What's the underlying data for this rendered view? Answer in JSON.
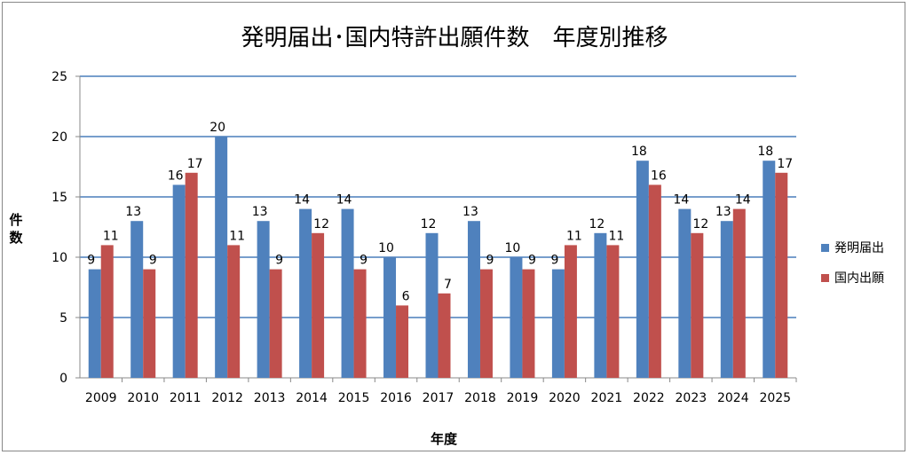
{
  "chart_data": {
    "type": "bar",
    "title": "発明届出･国内特許出願件数　年度別推移",
    "xlabel": "年度",
    "ylabel": "件数",
    "ylim": [
      0,
      25
    ],
    "yticks": [
      0,
      5,
      10,
      15,
      20,
      25
    ],
    "grid": true,
    "legend_position": "right",
    "categories": [
      "2009",
      "2010",
      "2011",
      "2012",
      "2013",
      "2014",
      "2015",
      "2016",
      "2017",
      "2018",
      "2019",
      "2020",
      "2021",
      "2022",
      "2023",
      "2024",
      "2025"
    ],
    "series": [
      {
        "name": "発明届出",
        "color": "#4f81bd",
        "values": [
          9,
          13,
          16,
          20,
          13,
          14,
          14,
          10,
          12,
          13,
          10,
          9,
          12,
          18,
          14,
          13,
          18
        ]
      },
      {
        "name": "国内出願",
        "color": "#c0504d",
        "values": [
          11,
          9,
          17,
          11,
          9,
          12,
          9,
          6,
          7,
          9,
          9,
          11,
          11,
          16,
          12,
          14,
          17
        ]
      }
    ]
  }
}
